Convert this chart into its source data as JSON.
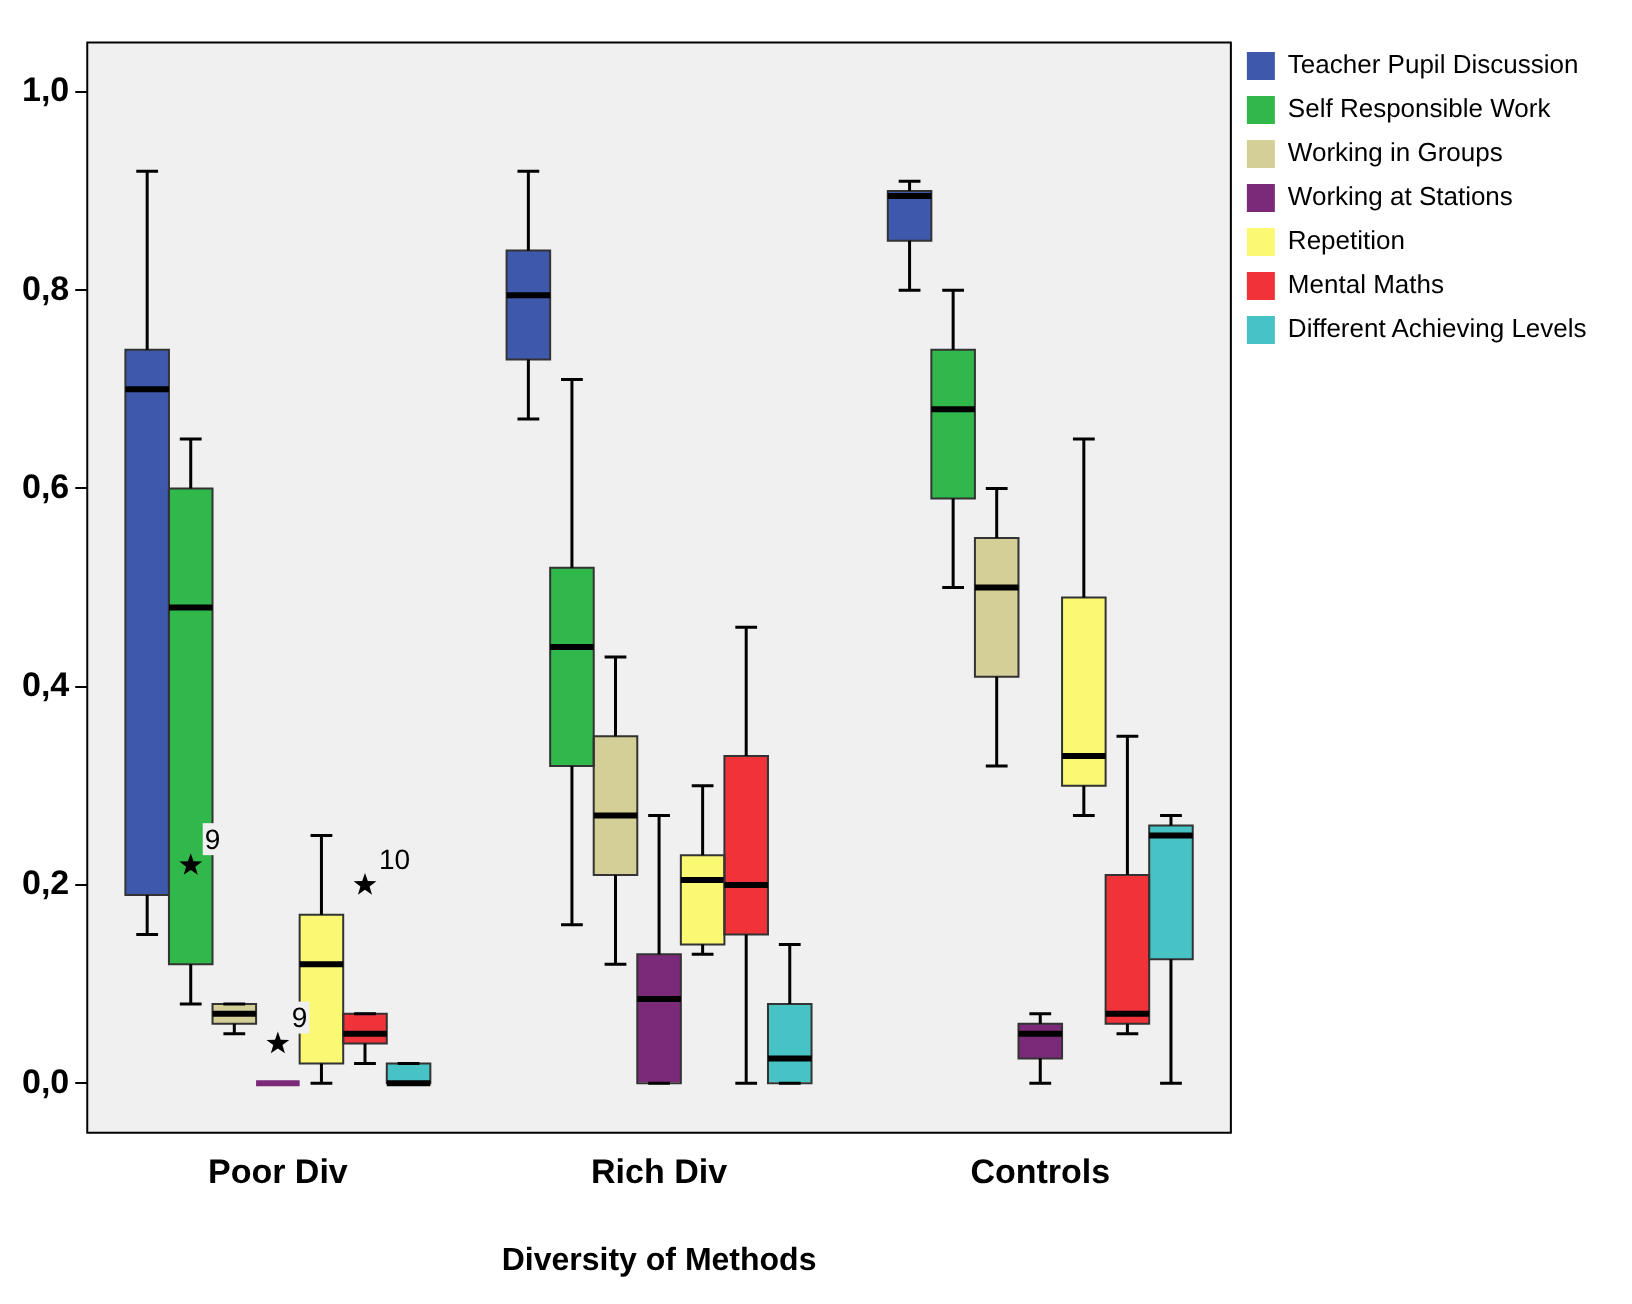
{
  "chart_data": {
    "type": "box",
    "xlabel": "Diversity of Methods",
    "categories": [
      "Poor Div",
      "Rich Div",
      "Controls"
    ],
    "ylim": [
      -0.05,
      1.05
    ],
    "yticks": [
      {
        "value": 0,
        "label": "0,0"
      },
      {
        "value": 0.2,
        "label": "0,2"
      },
      {
        "value": 0.4,
        "label": "0,4"
      },
      {
        "value": 0.6,
        "label": "0,6"
      },
      {
        "value": 0.8,
        "label": "0,8"
      },
      {
        "value": 1,
        "label": "1,0"
      }
    ],
    "legend": "top right",
    "marker": "star",
    "series": [
      {
        "name": "Teacher Pupil Discussion",
        "color": "#3e58ac",
        "boxes": [
          {
            "low": 0.15,
            "q1": 0.19,
            "median": 0.7,
            "q3": 0.74,
            "high": 0.92
          },
          {
            "low": 0.67,
            "q1": 0.73,
            "median": 0.795,
            "q3": 0.84,
            "high": 0.92
          },
          {
            "low": 0.8,
            "q1": 0.85,
            "median": 0.895,
            "q3": 0.9,
            "high": 0.91
          }
        ]
      },
      {
        "name": "Self Responsible Work",
        "color": "#30b84a",
        "boxes": [
          {
            "low": 0.08,
            "q1": 0.12,
            "median": 0.48,
            "q3": 0.6,
            "high": 0.65,
            "outliers": [
              0.22
            ]
          },
          {
            "low": 0.16,
            "q1": 0.32,
            "median": 0.44,
            "q3": 0.52,
            "high": 0.71
          },
          {
            "low": 0.5,
            "q1": 0.59,
            "median": 0.68,
            "q3": 0.74,
            "high": 0.8
          }
        ]
      },
      {
        "name": "Working in Groups",
        "color": "#d4cf96",
        "boxes": [
          {
            "low": 0.05,
            "q1": 0.06,
            "median": 0.07,
            "q3": 0.08,
            "high": 0.08
          },
          {
            "low": 0.12,
            "q1": 0.21,
            "median": 0.27,
            "q3": 0.35,
            "high": 0.43
          },
          {
            "low": 0.32,
            "q1": 0.41,
            "median": 0.5,
            "q3": 0.55,
            "high": 0.6
          }
        ]
      },
      {
        "name": "Working at Stations",
        "color": "#7b2a7a",
        "boxes": [
          {
            "low": 0,
            "q1": 0,
            "median": 0,
            "q3": 0,
            "high": 0,
            "outliers": [
              0.04
            ]
          },
          {
            "low": 0,
            "q1": 0,
            "median": 0.085,
            "q3": 0.13,
            "high": 0.27
          },
          {
            "low": 0,
            "q1": 0.025,
            "median": 0.05,
            "q3": 0.06,
            "high": 0.07
          }
        ]
      },
      {
        "name": "Repetition",
        "color": "#fbf873",
        "boxes": [
          {
            "low": 0,
            "q1": 0.02,
            "median": 0.12,
            "q3": 0.17,
            "high": 0.25
          },
          {
            "low": 0.13,
            "q1": 0.14,
            "median": 0.205,
            "q3": 0.23,
            "high": 0.3
          },
          {
            "low": 0.27,
            "q1": 0.3,
            "median": 0.33,
            "q3": 0.49,
            "high": 0.65
          }
        ]
      },
      {
        "name": "Mental Maths",
        "color": "#ef3338",
        "boxes": [
          {
            "low": 0.02,
            "q1": 0.04,
            "median": 0.05,
            "q3": 0.07,
            "high": 0.07,
            "outliers": [
              0.2
            ]
          },
          {
            "low": 0,
            "q1": 0.15,
            "median": 0.2,
            "q3": 0.33,
            "high": 0.46
          },
          {
            "low": 0.05,
            "q1": 0.06,
            "median": 0.07,
            "q3": 0.21,
            "high": 0.35
          }
        ]
      },
      {
        "name": "Different Achieving Levels",
        "color": "#47c3c6",
        "boxes": [
          {
            "low": 0,
            "q1": 0,
            "median": 0,
            "q3": 0.02,
            "high": 0.02
          },
          {
            "low": 0,
            "q1": 0,
            "median": 0.025,
            "q3": 0.08,
            "high": 0.14
          },
          {
            "low": 0,
            "q1": 0.125,
            "median": 0.25,
            "q3": 0.26,
            "high": 0.27
          }
        ]
      }
    ],
    "annotations": [
      "9",
      "9",
      "10"
    ]
  }
}
